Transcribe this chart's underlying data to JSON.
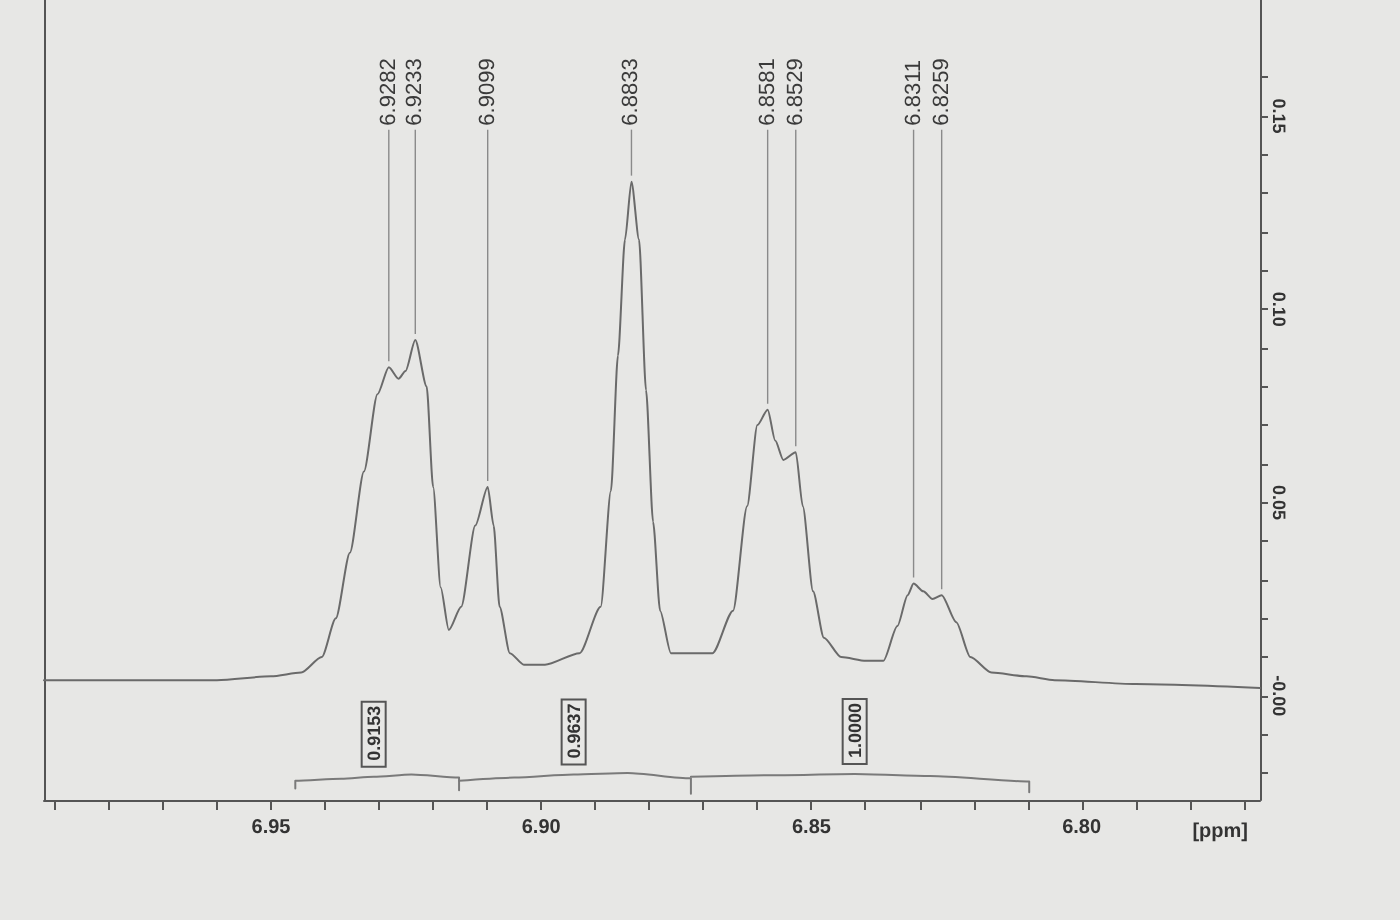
{
  "chart_data": {
    "type": "line",
    "xlabel": "[ppm]",
    "xlim": [
      6.992,
      6.767
    ],
    "xticks": [
      {
        "value": 6.99,
        "label": null
      },
      {
        "value": 6.98,
        "label": null
      },
      {
        "value": 6.97,
        "label": null
      },
      {
        "value": 6.96,
        "label": null
      },
      6.95,
      {
        "value": 6.94,
        "label": null
      },
      {
        "value": 6.93,
        "label": null
      },
      {
        "value": 6.92,
        "label": null
      },
      {
        "value": 6.91,
        "label": null
      },
      {
        "value": 6.9,
        "label": "6.90"
      },
      {
        "value": 6.89,
        "label": null
      },
      {
        "value": 6.88,
        "label": null
      },
      {
        "value": 6.87,
        "label": null
      },
      {
        "value": 6.86,
        "label": null
      },
      6.85,
      {
        "value": 6.84,
        "label": null
      },
      {
        "value": 6.83,
        "label": null
      },
      {
        "value": 6.82,
        "label": null
      },
      {
        "value": 6.81,
        "label": null
      },
      {
        "value": 6.8,
        "label": "6.80"
      },
      {
        "value": 6.79,
        "label": null
      },
      {
        "value": 6.78,
        "label": null
      },
      {
        "value": 6.77,
        "label": null
      }
    ],
    "ylim": [
      -0.027,
      0.18
    ],
    "yticks": [
      {
        "value": -0.02,
        "label": null
      },
      {
        "value": -0.01,
        "label": null
      },
      {
        "value": 0,
        "label": "-0.00"
      },
      {
        "value": 0.01,
        "label": null
      },
      {
        "value": 0.02,
        "label": null
      },
      {
        "value": 0.03,
        "label": null
      },
      {
        "value": 0.04,
        "label": null
      },
      0.05,
      {
        "value": 0.06,
        "label": null
      },
      {
        "value": 0.07,
        "label": null
      },
      {
        "value": 0.08,
        "label": null
      },
      {
        "value": 0.09,
        "label": null
      },
      {
        "value": 0.1,
        "label": "0.10"
      },
      {
        "value": 0.11,
        "label": null
      },
      {
        "value": 0.12,
        "label": null
      },
      {
        "value": 0.13,
        "label": null
      },
      {
        "value": 0.14,
        "label": null
      },
      0.15,
      {
        "value": 0.16,
        "label": null
      }
    ],
    "marker": "none",
    "series": [
      {
        "color": "#6a6a6a",
        "x": [
          6.992,
          6.98,
          6.97,
          6.96,
          6.95,
          6.9444,
          6.9406,
          6.938,
          6.9354,
          6.9328,
          6.9303,
          6.9282,
          6.9264,
          6.9251,
          6.9233,
          6.9212,
          6.92,
          6.9186,
          6.9171,
          6.9148,
          6.9122,
          6.9099,
          6.9088,
          6.9077,
          6.9058,
          6.9032,
          6.8993,
          6.8929,
          6.889,
          6.8871,
          6.8858,
          6.8845,
          6.8833,
          6.8819,
          6.8806,
          6.8793,
          6.878,
          6.876,
          6.8683,
          6.8645,
          6.8619,
          6.86,
          6.8581,
          6.8567,
          6.8552,
          6.8529,
          6.8516,
          6.8497,
          6.8477,
          6.8445,
          6.8399,
          6.8367,
          6.8341,
          6.8322,
          6.8311,
          6.8293,
          6.8276,
          6.8259,
          6.8232,
          6.8206,
          6.8167,
          6.8102,
          6.805,
          6.79,
          6.767
        ],
        "values": [
          0.004,
          0.004,
          0.004,
          0.004,
          0.005,
          0.006,
          0.01,
          0.02,
          0.037,
          0.058,
          0.078,
          0.085,
          0.082,
          0.084,
          0.092,
          0.08,
          0.054,
          0.028,
          0.017,
          0.023,
          0.044,
          0.054,
          0.044,
          0.023,
          0.011,
          0.008,
          0.008,
          0.011,
          0.023,
          0.053,
          0.088,
          0.118,
          0.133,
          0.118,
          0.079,
          0.045,
          0.022,
          0.011,
          0.011,
          0.022,
          0.049,
          0.07,
          0.074,
          0.066,
          0.061,
          0.063,
          0.049,
          0.027,
          0.015,
          0.01,
          0.009,
          0.009,
          0.018,
          0.026,
          0.029,
          0.027,
          0.025,
          0.026,
          0.019,
          0.01,
          0.006,
          0.005,
          0.004,
          0.003,
          0.002
        ]
      },
      {
        "color": "#7a7a7a",
        "x": [
          6.9455,
          6.9455,
          6.937,
          6.931,
          6.924,
          6.9152,
          6.9152
        ],
        "values": [
          -0.024,
          -0.022,
          -0.0215,
          -0.021,
          -0.0204,
          -0.0212,
          -0.0245
        ]
      },
      {
        "color": "#7a7a7a",
        "x": [
          6.9152,
          6.905,
          6.894,
          6.884,
          6.8723,
          6.8723
        ],
        "values": [
          -0.022,
          -0.0212,
          -0.0204,
          -0.02,
          -0.0214,
          -0.0254
        ]
      },
      {
        "color": "#7a7a7a",
        "x": [
          6.8723,
          6.858,
          6.842,
          6.828,
          6.8097,
          6.8097
        ],
        "values": [
          -0.021,
          -0.0206,
          -0.0203,
          -0.0208,
          -0.0222,
          -0.025
        ]
      }
    ],
    "annotations": [
      {
        "text": "6.9282",
        "x": 6.9282,
        "y": 0.085
      },
      {
        "text": "6.9233",
        "x": 6.9233,
        "y": 0.092
      },
      {
        "text": "6.9099",
        "x": 6.9099,
        "y": 0.054
      },
      {
        "text": "6.8833",
        "x": 6.8833,
        "y": 0.133
      },
      {
        "text": "6.8581",
        "x": 6.8581,
        "y": 0.074
      },
      {
        "text": "6.8529",
        "x": 6.8529,
        "y": 0.063
      },
      {
        "text": "6.8311",
        "x": 6.8311,
        "y": 0.029
      },
      {
        "text": "6.8259",
        "x": 6.8259,
        "y": 0.026
      },
      {
        "text": "0.9153",
        "x": 6.931,
        "y": -0.021
      },
      {
        "text": "0.9637",
        "x": 6.894,
        "y": -0.0204
      },
      {
        "text": "1.0000",
        "x": 6.842,
        "y": -0.0203
      }
    ]
  }
}
